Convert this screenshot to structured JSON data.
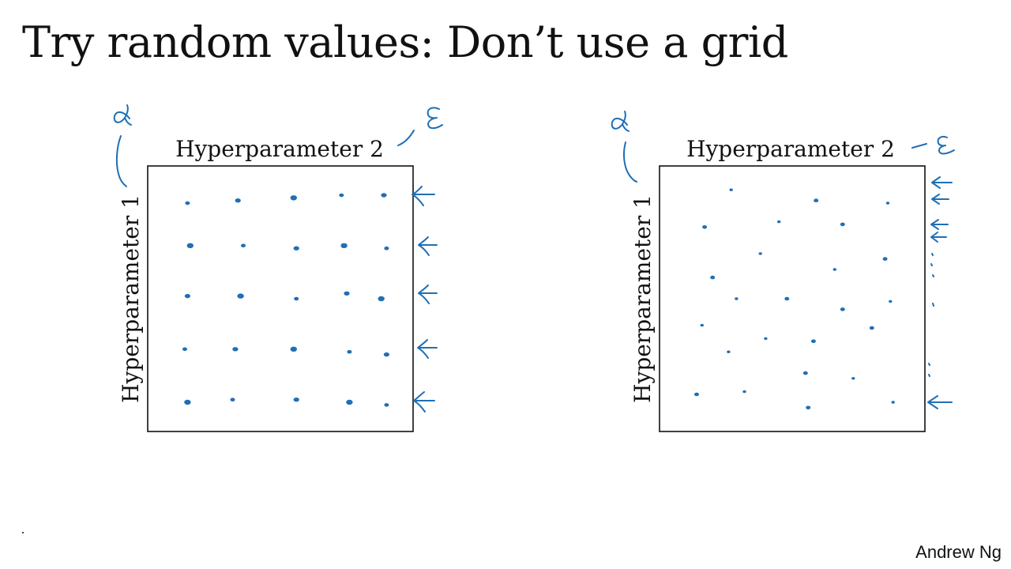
{
  "slide": {
    "title": "Try random values: Don’t use a grid",
    "credit": "Andrew Ng"
  },
  "colors": {
    "ink": "#1f6fb5",
    "text": "#111111"
  },
  "panels": [
    {
      "id": "grid",
      "x_label": "Hyperparameter 2",
      "y_label": "Hyperparameter 1",
      "samples": [
        [
          0.15,
          0.86
        ],
        [
          0.34,
          0.87
        ],
        [
          0.55,
          0.88
        ],
        [
          0.73,
          0.89
        ],
        [
          0.89,
          0.89
        ],
        [
          0.16,
          0.7
        ],
        [
          0.36,
          0.7
        ],
        [
          0.56,
          0.69
        ],
        [
          0.74,
          0.7
        ],
        [
          0.9,
          0.69
        ],
        [
          0.15,
          0.51
        ],
        [
          0.35,
          0.51
        ],
        [
          0.56,
          0.5
        ],
        [
          0.75,
          0.52
        ],
        [
          0.88,
          0.5
        ],
        [
          0.14,
          0.31
        ],
        [
          0.33,
          0.31
        ],
        [
          0.55,
          0.31
        ],
        [
          0.76,
          0.3
        ],
        [
          0.9,
          0.29
        ],
        [
          0.15,
          0.11
        ],
        [
          0.32,
          0.12
        ],
        [
          0.56,
          0.12
        ],
        [
          0.76,
          0.11
        ],
        [
          0.9,
          0.1
        ]
      ]
    },
    {
      "id": "random",
      "x_label": "Hyperparameter 2",
      "y_label": "Hyperparameter 1",
      "samples": [
        [
          0.27,
          0.91
        ],
        [
          0.59,
          0.87
        ],
        [
          0.86,
          0.86
        ],
        [
          0.17,
          0.77
        ],
        [
          0.45,
          0.79
        ],
        [
          0.69,
          0.78
        ],
        [
          0.38,
          0.67
        ],
        [
          0.85,
          0.65
        ],
        [
          0.66,
          0.61
        ],
        [
          0.2,
          0.58
        ],
        [
          0.29,
          0.5
        ],
        [
          0.48,
          0.5
        ],
        [
          0.87,
          0.49
        ],
        [
          0.69,
          0.46
        ],
        [
          0.16,
          0.4
        ],
        [
          0.8,
          0.39
        ],
        [
          0.4,
          0.35
        ],
        [
          0.58,
          0.34
        ],
        [
          0.26,
          0.3
        ],
        [
          0.55,
          0.22
        ],
        [
          0.73,
          0.2
        ],
        [
          0.14,
          0.14
        ],
        [
          0.32,
          0.15
        ],
        [
          0.56,
          0.09
        ],
        [
          0.88,
          0.11
        ]
      ]
    }
  ]
}
